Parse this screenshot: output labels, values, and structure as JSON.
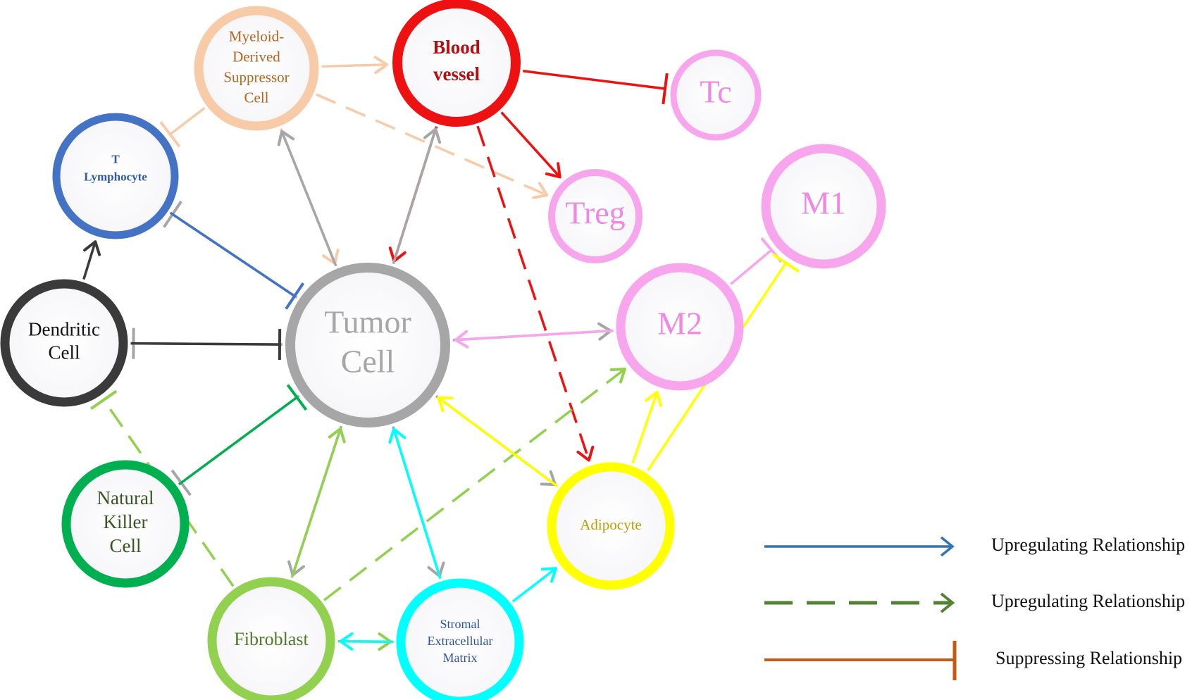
{
  "nodes": {
    "mdsc": {
      "lines": [
        "Myeloid-",
        "Derived",
        "Suppressor",
        "Cell"
      ],
      "color": "#f7cba8",
      "text_color": "#b5651d"
    },
    "blood_vessel": {
      "lines": [
        "Blood",
        "vessel"
      ],
      "color": "#ee1111",
      "text_color": "#b01010"
    },
    "tc": {
      "lines": [
        "Tc"
      ],
      "color": "#f7a6ee",
      "text_color": "#ee88e4"
    },
    "t_lymphocyte": {
      "lines": [
        "T",
        "Lymphocyte"
      ],
      "color": "#4472c4",
      "text_color": "#2e5ba8"
    },
    "treg": {
      "lines": [
        "Treg"
      ],
      "color": "#f7a6ee",
      "text_color": "#ee88e4"
    },
    "m1": {
      "lines": [
        "M1"
      ],
      "color": "#f7a6ee",
      "text_color": "#ee88e4"
    },
    "dendritic_cell": {
      "lines": [
        "Dendritic",
        "Cell"
      ],
      "color": "#3a3a3a",
      "text_color": "#111111"
    },
    "tumor_cell": {
      "lines": [
        "Tumor",
        "Cell"
      ],
      "color": "#a6a6a6",
      "text_color": "#a6a6a6"
    },
    "m2": {
      "lines": [
        "M2"
      ],
      "color": "#f7a6ee",
      "text_color": "#ee88e4"
    },
    "natural_killer_cell": {
      "lines": [
        "Natural",
        "Killer",
        "Cell"
      ],
      "color": "#00b050",
      "text_color": "#375623"
    },
    "adipocyte": {
      "lines": [
        "Adipocyte"
      ],
      "color": "#ffff00",
      "text_color": "#b8a000"
    },
    "fibroblast": {
      "lines": [
        "Fibroblast"
      ],
      "color": "#92d050",
      "text_color": "#4e7a26"
    },
    "stromal_ecm": {
      "lines": [
        "Stromal",
        "Extracellular",
        "Matrix"
      ],
      "color": "#00ffff",
      "text_color": "#2f5597"
    }
  },
  "edges": [
    {
      "from": "mdsc",
      "to": "blood_vessel",
      "type": "upregulating",
      "color": "#f7cba8"
    },
    {
      "from": "mdsc",
      "to": "t_lymphocyte",
      "type": "suppressing",
      "color": "#f7cba8"
    },
    {
      "from": "mdsc",
      "to": "tumor_cell",
      "type": "upregulating",
      "color": "#f7cba8"
    },
    {
      "from": "mdsc",
      "to": "treg",
      "type": "upregulating-indirect",
      "color": "#f7cba8"
    },
    {
      "from": "blood_vessel",
      "to": "tc",
      "type": "suppressing",
      "color": "#ee1111"
    },
    {
      "from": "blood_vessel",
      "to": "treg",
      "type": "upregulating",
      "color": "#ee1111"
    },
    {
      "from": "blood_vessel",
      "to": "tumor_cell",
      "type": "upregulating",
      "color": "#ee1111"
    },
    {
      "from": "blood_vessel",
      "to": "adipocyte",
      "type": "upregulating-indirect",
      "color": "#ee1111"
    },
    {
      "from": "tumor_cell",
      "to": "mdsc",
      "type": "upregulating",
      "color": "#a6a6a6"
    },
    {
      "from": "tumor_cell",
      "to": "blood_vessel",
      "type": "upregulating",
      "color": "#a6a6a6"
    },
    {
      "from": "tumor_cell",
      "to": "t_lymphocyte",
      "type": "suppressing",
      "color": "#a6a6a6"
    },
    {
      "from": "tumor_cell",
      "to": "dendritic_cell",
      "type": "suppressing",
      "color": "#a6a6a6"
    },
    {
      "from": "tumor_cell",
      "to": "natural_killer_cell",
      "type": "suppressing",
      "color": "#a6a6a6"
    },
    {
      "from": "tumor_cell",
      "to": "m2",
      "type": "upregulating",
      "color": "#a6a6a6"
    },
    {
      "from": "tumor_cell",
      "to": "adipocyte",
      "type": "upregulating",
      "color": "#a6a6a6"
    },
    {
      "from": "tumor_cell",
      "to": "fibroblast",
      "type": "upregulating",
      "color": "#a6a6a6"
    },
    {
      "from": "tumor_cell",
      "to": "stromal_ecm",
      "type": "upregulating",
      "color": "#a6a6a6"
    },
    {
      "from": "t_lymphocyte",
      "to": "tumor_cell",
      "type": "suppressing",
      "color": "#4472c4"
    },
    {
      "from": "dendritic_cell",
      "to": "t_lymphocyte",
      "type": "upregulating",
      "color": "#3a3a3a"
    },
    {
      "from": "dendritic_cell",
      "to": "tumor_cell",
      "type": "suppressing",
      "color": "#3a3a3a"
    },
    {
      "from": "m2",
      "to": "tumor_cell",
      "type": "upregulating",
      "color": "#f7a6ee"
    },
    {
      "from": "m2",
      "to": "m1",
      "type": "suppressing",
      "color": "#f7a6ee"
    },
    {
      "from": "natural_killer_cell",
      "to": "tumor_cell",
      "type": "suppressing",
      "color": "#00b050"
    },
    {
      "from": "fibroblast",
      "to": "tumor_cell",
      "type": "upregulating",
      "color": "#92d050"
    },
    {
      "from": "fibroblast",
      "to": "m2",
      "type": "upregulating-indirect",
      "color": "#92d050"
    },
    {
      "from": "fibroblast",
      "to": "dendritic_cell",
      "type": "suppressing-indirect",
      "color": "#92d050"
    },
    {
      "from": "fibroblast",
      "to": "stromal_ecm",
      "type": "upregulating",
      "color": "#92d050"
    },
    {
      "from": "stromal_ecm",
      "to": "fibroblast",
      "type": "upregulating",
      "color": "#00ffff"
    },
    {
      "from": "stromal_ecm",
      "to": "tumor_cell",
      "type": "upregulating",
      "color": "#00ffff"
    },
    {
      "from": "stromal_ecm",
      "to": "adipocyte",
      "type": "upregulating",
      "color": "#00ffff"
    },
    {
      "from": "adipocyte",
      "to": "tumor_cell",
      "type": "upregulating",
      "color": "#ffff00"
    },
    {
      "from": "adipocyte",
      "to": "m2",
      "type": "upregulating",
      "color": "#ffff00"
    },
    {
      "from": "adipocyte",
      "to": "m1",
      "type": "suppressing",
      "color": "#ffff00"
    }
  ],
  "legend": [
    {
      "label": "Upregulating Relationship",
      "style": "solid-arrow",
      "color": "#2e75b6"
    },
    {
      "label": "Upregulating Relationship",
      "style": "dashed-arrow",
      "color": "#548235"
    },
    {
      "label": "Suppressing Relationship",
      "style": "solid-bar",
      "color": "#c55a11"
    }
  ]
}
